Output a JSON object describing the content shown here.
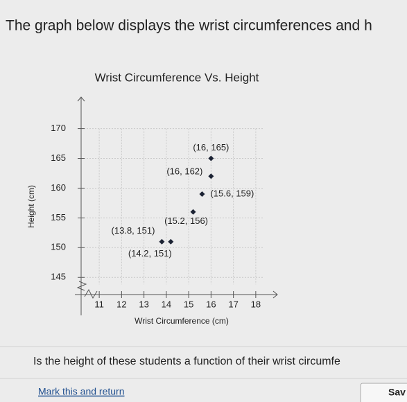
{
  "intro": "The graph below displays the wrist circumferences and h",
  "chart_data": {
    "type": "scatter",
    "title": "Wrist Circumference Vs. Height",
    "x_label": "Wrist Circumference (cm)",
    "y_label": "Height (cm)",
    "x": [
      16,
      16,
      15.6,
      15.2,
      13.8,
      14.2
    ],
    "series": [
      {
        "color": "#1b2233",
        "values": [
          165,
          162,
          159,
          156,
          151,
          151
        ],
        "value_labels": [
          "(16, 165)",
          "(16, 162)",
          "(15.6, 159)",
          "(15.2, 156)",
          "(13.8, 151)",
          "(14.2, 151)"
        ]
      }
    ],
    "xlim": [
      10.5,
      18.5
    ],
    "ylim": [
      142,
      171
    ],
    "xticks": [
      11,
      12,
      13,
      14,
      15,
      16,
      17,
      18
    ],
    "yticks": [
      145,
      150,
      155,
      160,
      165,
      170
    ],
    "grid": true
  },
  "question": "Is the height of these students a function of their wrist circumfe",
  "mark_link": "Mark this and return",
  "save_button": "Sav"
}
